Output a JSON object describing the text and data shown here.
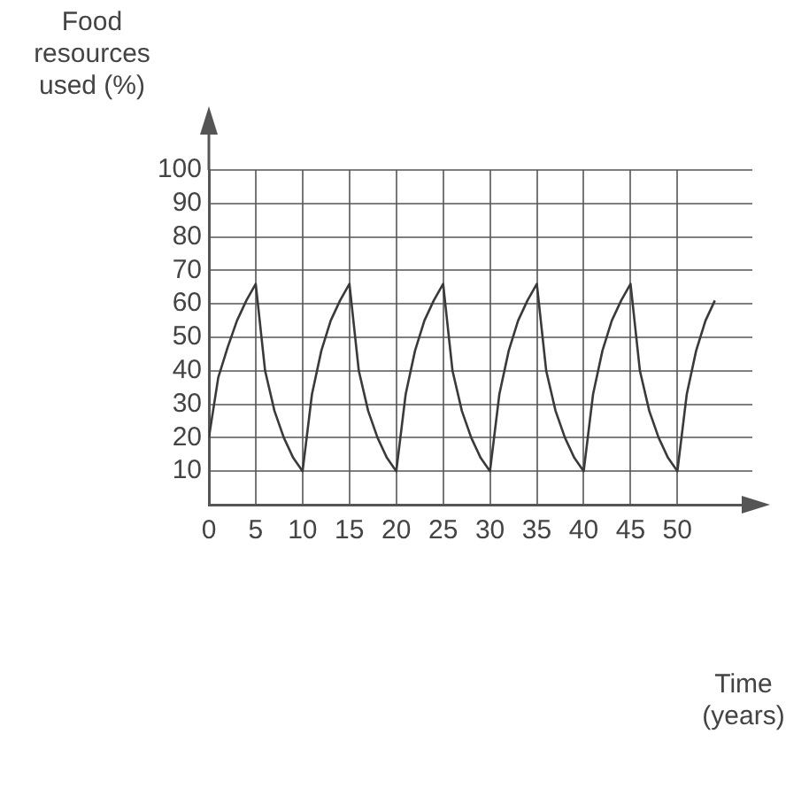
{
  "chart_data": {
    "type": "line",
    "xlabel": "Time (years)",
    "ylabel": "Food resources used (%)",
    "x": [
      0,
      1,
      2,
      3,
      4,
      5,
      6,
      7,
      8,
      9,
      10,
      11,
      12,
      13,
      14,
      15,
      16,
      17,
      18,
      19,
      20,
      21,
      22,
      23,
      24,
      25,
      26,
      27,
      28,
      29,
      30,
      31,
      32,
      33,
      34,
      35,
      36,
      37,
      38,
      39,
      40,
      41,
      42,
      43,
      44,
      45,
      46,
      47,
      48,
      49,
      50,
      51,
      52,
      53,
      54
    ],
    "series": [
      {
        "color": "#3a3a3a",
        "values": [
          20,
          38,
          47,
          55,
          61,
          66,
          40,
          28,
          20,
          14,
          10,
          33,
          46,
          55,
          61,
          66,
          40,
          28,
          20,
          14,
          10,
          33,
          46,
          55,
          61,
          66,
          40,
          28,
          20,
          14,
          10,
          33,
          46,
          55,
          61,
          66,
          40,
          28,
          20,
          14,
          10,
          33,
          46,
          55,
          61,
          66,
          40,
          28,
          20,
          14,
          10,
          33,
          46,
          55,
          61
        ]
      }
    ],
    "xlim": [
      0,
      58
    ],
    "ylim": [
      0,
      100
    ],
    "xticks": [
      0,
      5,
      10,
      15,
      20,
      25,
      30,
      35,
      40,
      45,
      50
    ],
    "yticks": [
      10,
      20,
      30,
      40,
      50,
      60,
      70,
      80,
      90,
      100
    ],
    "grid": true,
    "legend": false,
    "marker": "none",
    "line_style": "solid"
  }
}
